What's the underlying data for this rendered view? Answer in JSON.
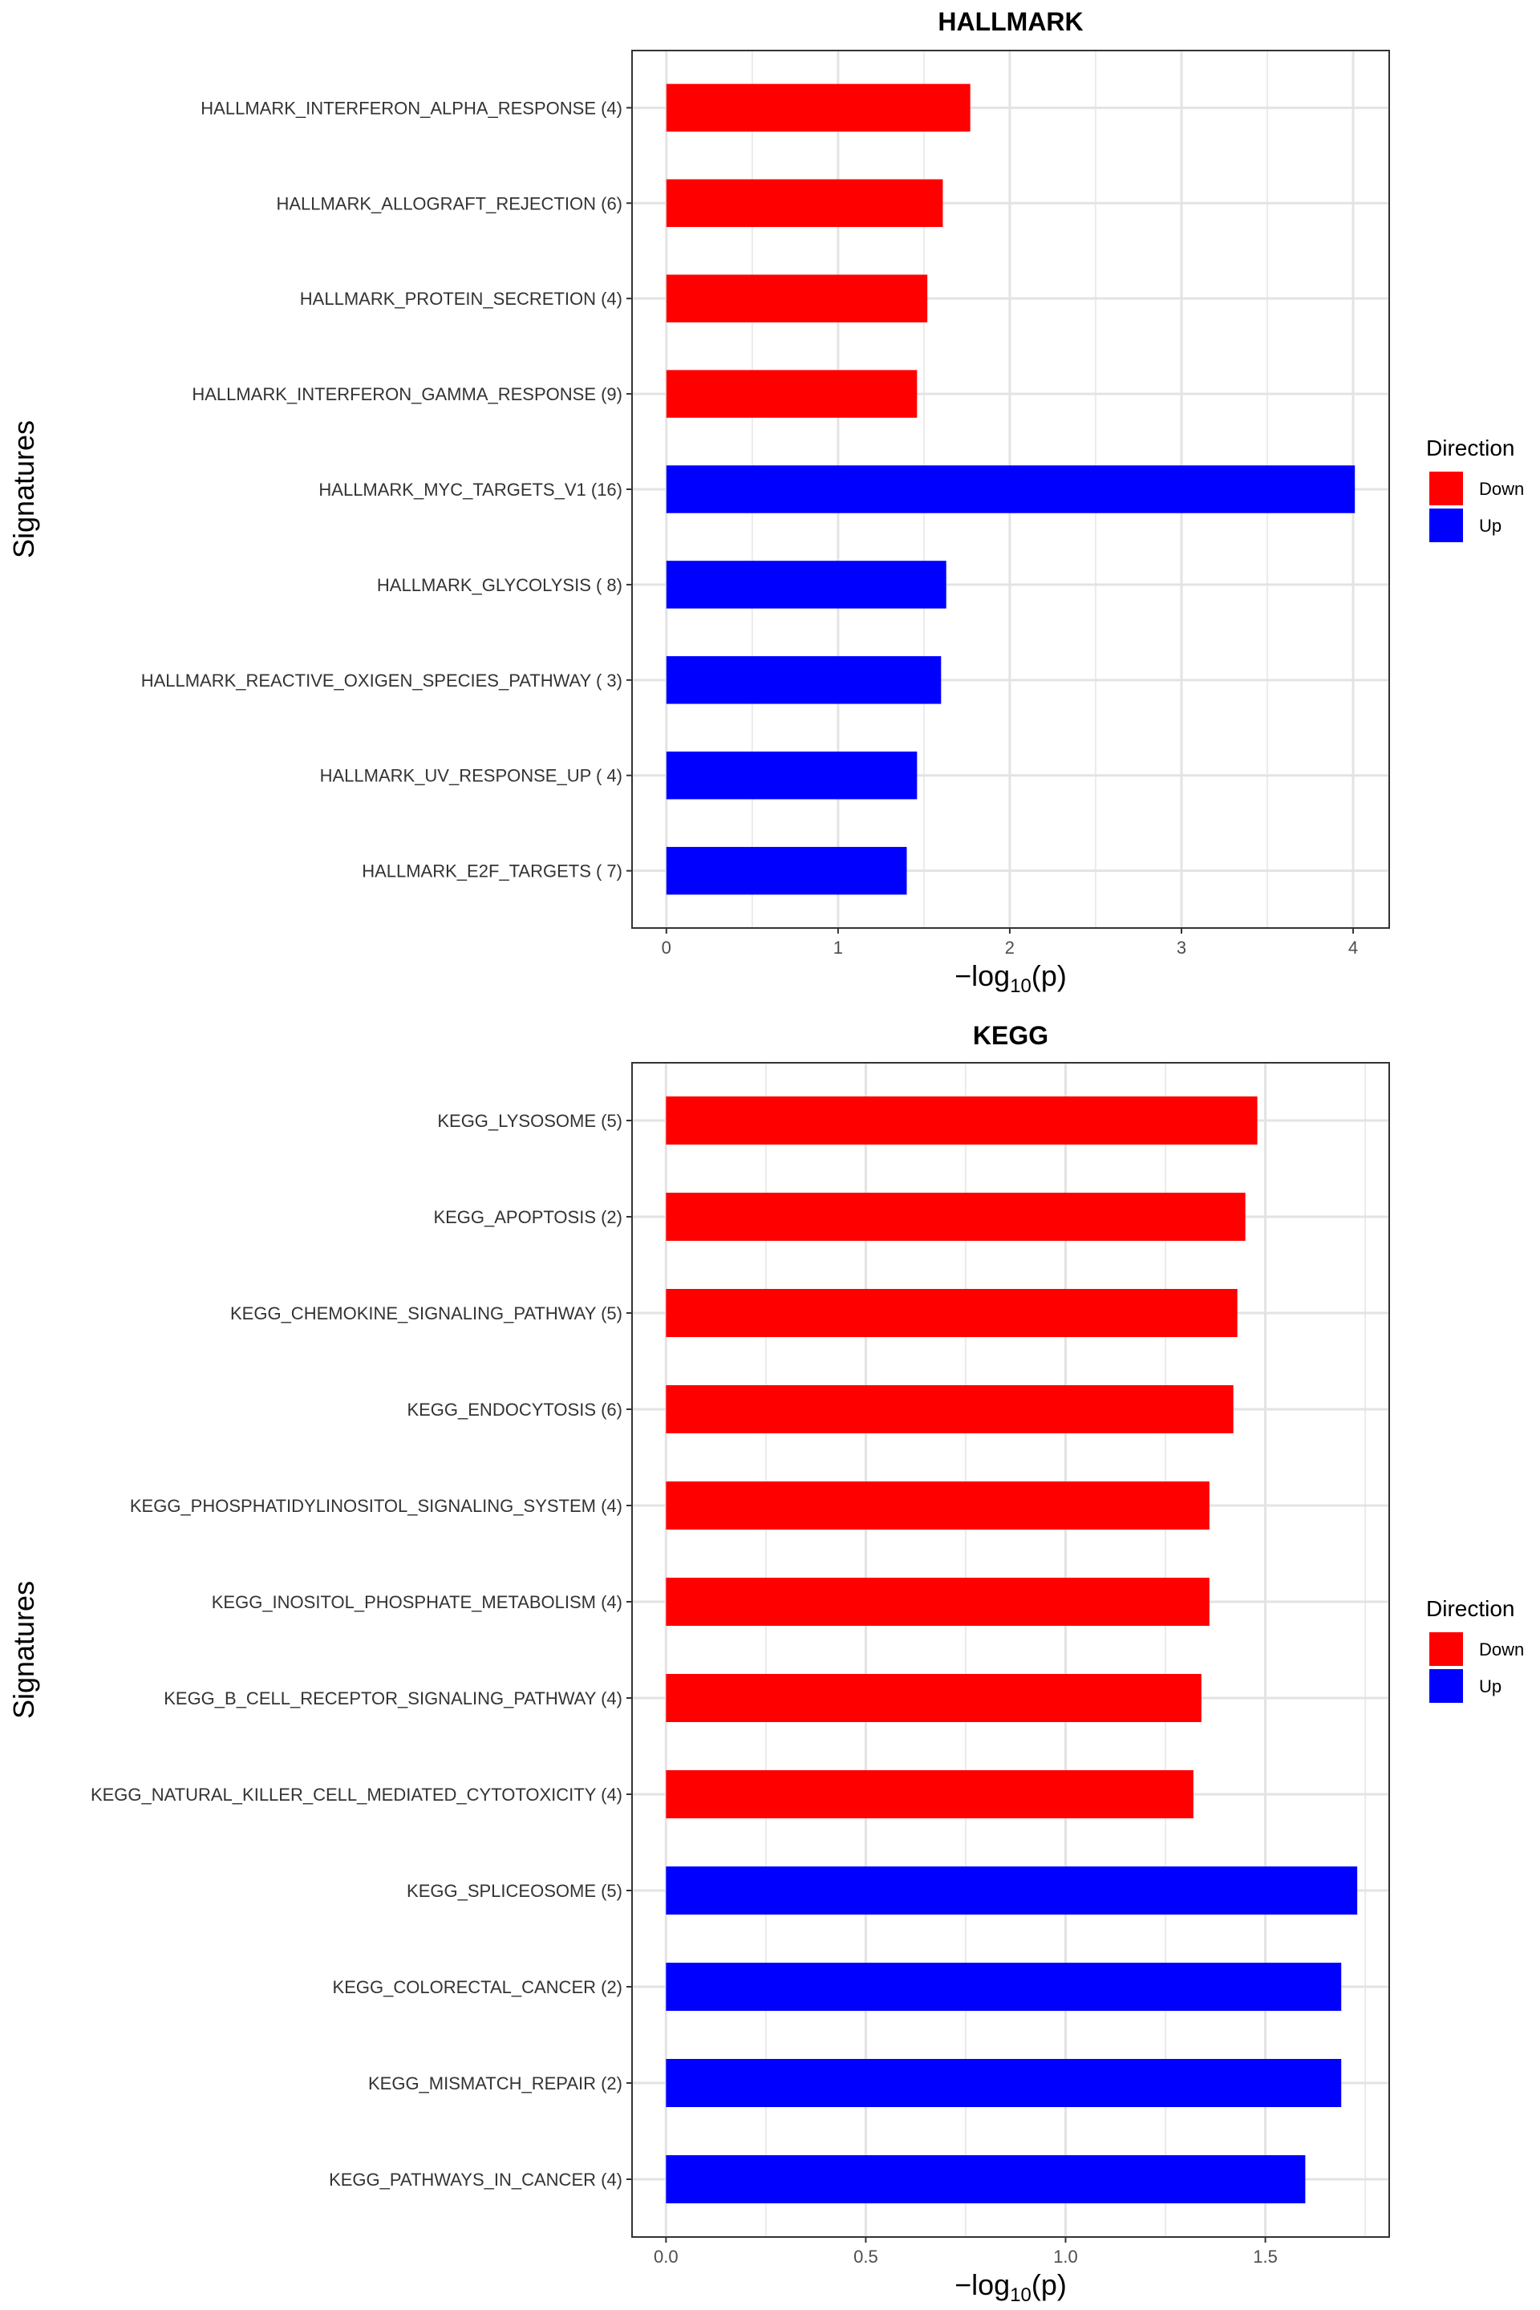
{
  "chart_data": [
    {
      "type": "bar",
      "orientation": "horizontal",
      "title": "HALLMARK",
      "xlabel": "-log10(p)",
      "ylabel": "Signatures",
      "xlim": [
        -0.2,
        4.21
      ],
      "xticks": [
        0,
        1,
        2,
        3,
        4
      ],
      "xtick_labels": [
        "0",
        "1",
        "2",
        "3",
        "4"
      ],
      "grid": true,
      "legend": {
        "title": "Direction",
        "placement": "right",
        "entries": [
          {
            "label": "Down",
            "color": "#ff0000"
          },
          {
            "label": "Up",
            "color": "#0000ff"
          }
        ]
      },
      "categories": [
        "HALLMARK_INTERFERON_ALPHA_RESPONSE (4)",
        "HALLMARK_ALLOGRAFT_REJECTION (6)",
        "HALLMARK_PROTEIN_SECRETION (4)",
        "HALLMARK_INTERFERON_GAMMA_RESPONSE (9)",
        "HALLMARK_MYC_TARGETS_V1 (16)",
        "HALLMARK_GLYCOLYSIS ( 8)",
        "HALLMARK_REACTIVE_OXIGEN_SPECIES_PATHWAY ( 3)",
        "HALLMARK_UV_RESPONSE_UP ( 4)",
        "HALLMARK_E2F_TARGETS ( 7)"
      ],
      "values": [
        1.77,
        1.61,
        1.52,
        1.46,
        4.01,
        1.63,
        1.6,
        1.46,
        1.4
      ],
      "direction": [
        "Down",
        "Down",
        "Down",
        "Down",
        "Up",
        "Up",
        "Up",
        "Up",
        "Up"
      ]
    },
    {
      "type": "bar",
      "orientation": "horizontal",
      "title": "KEGG",
      "xlabel": "-log10(p)",
      "ylabel": "Signatures",
      "xlim": [
        -0.085,
        1.81
      ],
      "xticks": [
        0,
        0.5,
        1,
        1.5
      ],
      "xtick_labels": [
        "0.0",
        "0.5",
        "1.0",
        "1.5"
      ],
      "grid": true,
      "legend": {
        "title": "Direction",
        "placement": "right",
        "entries": [
          {
            "label": "Down",
            "color": "#ff0000"
          },
          {
            "label": "Up",
            "color": "#0000ff"
          }
        ]
      },
      "categories": [
        "KEGG_LYSOSOME (5)",
        "KEGG_APOPTOSIS (2)",
        "KEGG_CHEMOKINE_SIGNALING_PATHWAY (5)",
        "KEGG_ENDOCYTOSIS (6)",
        "KEGG_PHOSPHATIDYLINOSITOL_SIGNALING_SYSTEM (4)",
        "KEGG_INOSITOL_PHOSPHATE_METABOLISM (4)",
        "KEGG_B_CELL_RECEPTOR_SIGNALING_PATHWAY (4)",
        "KEGG_NATURAL_KILLER_CELL_MEDIATED_CYTOTOXICITY (4)",
        "KEGG_SPLICEOSOME (5)",
        "KEGG_COLORECTAL_CANCER (2)",
        "KEGG_MISMATCH_REPAIR (2)",
        "KEGG_PATHWAYS_IN_CANCER (4)"
      ],
      "values": [
        1.48,
        1.45,
        1.43,
        1.42,
        1.36,
        1.36,
        1.34,
        1.32,
        1.73,
        1.69,
        1.69,
        1.6
      ],
      "direction": [
        "Down",
        "Down",
        "Down",
        "Down",
        "Down",
        "Down",
        "Down",
        "Down",
        "Up",
        "Up",
        "Up",
        "Up"
      ]
    }
  ]
}
